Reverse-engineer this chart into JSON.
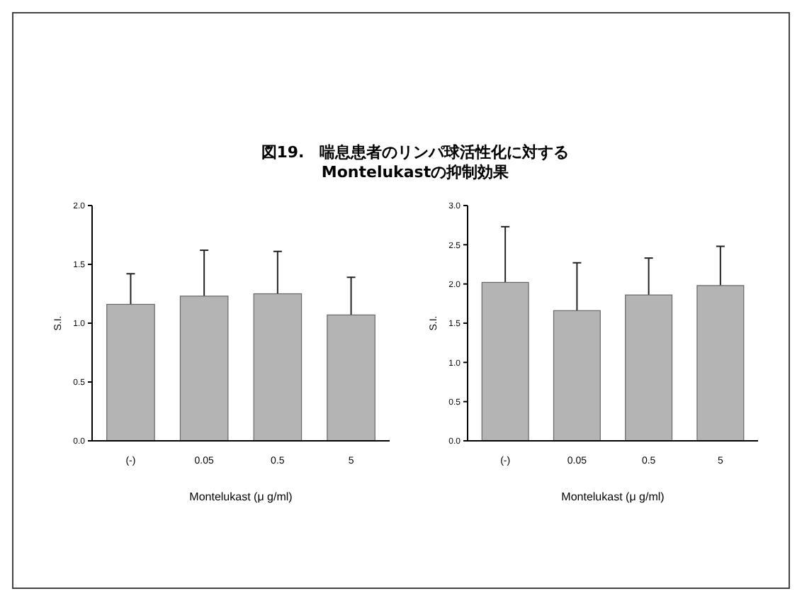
{
  "chart_data": [
    {
      "type": "bar",
      "title": "図19.　喘息患者のリンパ球活性化に対する\nMontelukastの抑制効果",
      "xlabel": "Montelukast (μ g/ml)",
      "ylabel": "S.I.",
      "categories": [
        "(-)",
        "0.05",
        "0.5",
        "5"
      ],
      "values": [
        1.16,
        1.23,
        1.25,
        1.07
      ],
      "errors": [
        0.26,
        0.39,
        0.36,
        0.32
      ],
      "color": "#b4b4b4",
      "ylim": [
        0,
        2
      ],
      "yticks": [
        {
          "value": 0,
          "label": "0.0"
        },
        0.5,
        {
          "value": 1,
          "label": "1.0"
        },
        1.5,
        {
          "value": 2,
          "label": "2.0"
        }
      ],
      "grid": false
    },
    {
      "type": "bar",
      "xlabel": "Montelukast (μ g/ml)",
      "ylabel": "S.I.",
      "categories": [
        "(-)",
        "0.05",
        "0.5",
        "5"
      ],
      "values": [
        2.02,
        1.66,
        1.86,
        1.98
      ],
      "errors": [
        0.71,
        0.61,
        0.47,
        0.5
      ],
      "color": "#b4b4b4",
      "ylim": [
        0,
        3
      ],
      "yticks": [
        {
          "value": 0,
          "label": "0.0"
        },
        0.5,
        {
          "value": 1,
          "label": "1.0"
        },
        1.5,
        {
          "value": 2,
          "label": "2.0"
        },
        2.5,
        {
          "value": 3,
          "label": "3.0"
        }
      ],
      "grid": false
    }
  ]
}
